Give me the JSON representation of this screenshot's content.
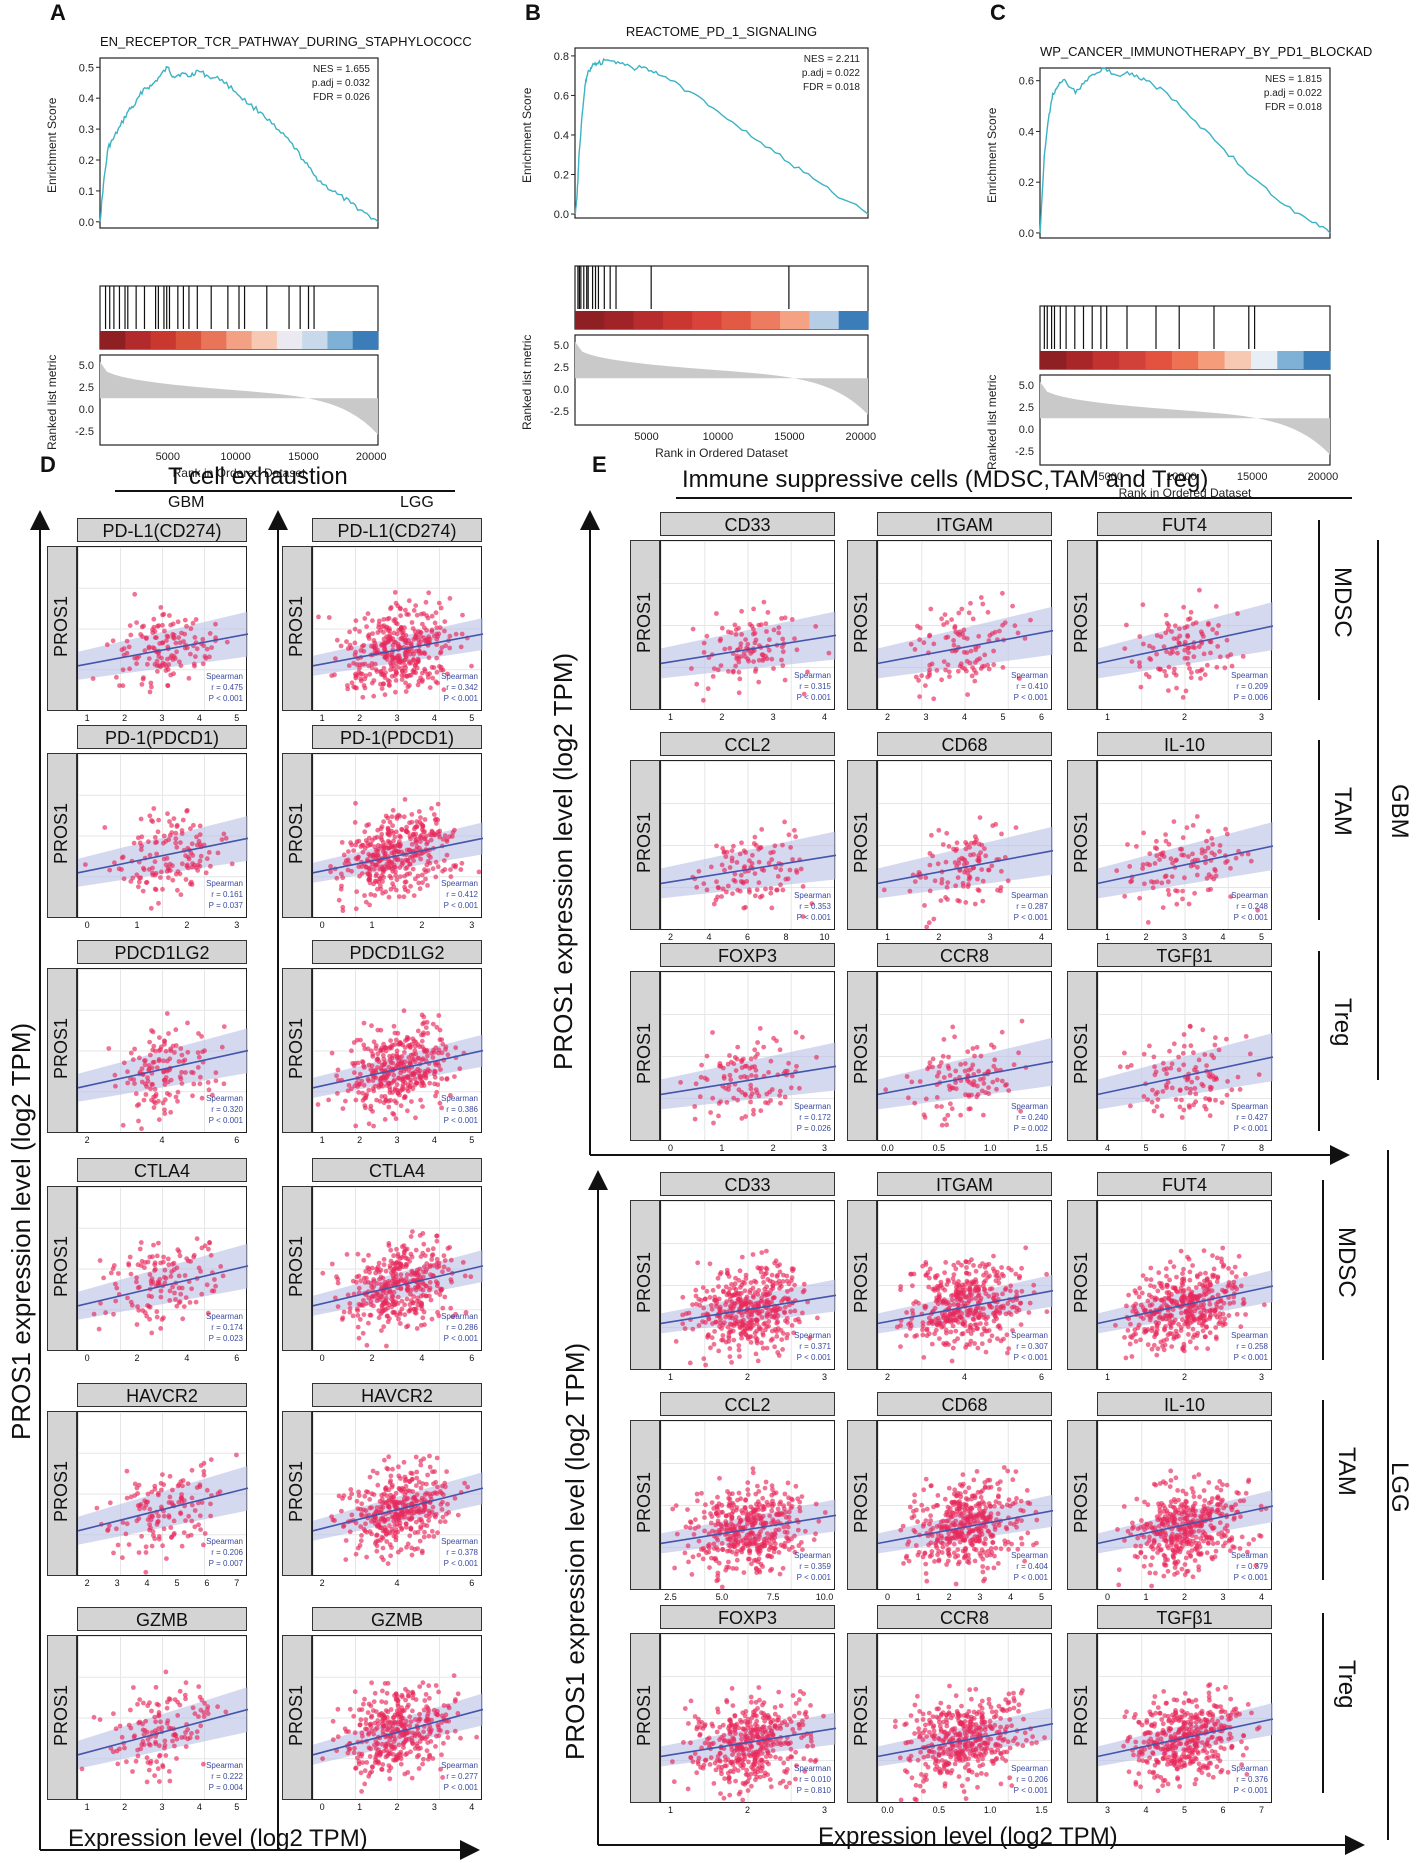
{
  "chart_data": [
    {
      "type": "line",
      "letter": "A",
      "title": "EN_RECEPTOR_TCR_PATHWAY_DURING_STAPHYLOCOCC",
      "ylabel": "Enrichment Score",
      "ylabel2": "Ranked list metric",
      "xlabel": "Rank in Ordered Dataset",
      "nes": "NES = 1.655",
      "padj": "p.adj = 0.032",
      "fdr": "FDR = 0.026",
      "yticks": [
        "0.5",
        "0.4",
        "0.3",
        "0.2",
        "0.1",
        "0.0"
      ],
      "yticks2": [
        "5.0",
        "2.5",
        "0.0",
        "-2.5"
      ],
      "xticks": [
        "5000",
        "10000",
        "15000",
        "20000"
      ],
      "x": [
        0,
        250,
        600,
        1000,
        1500,
        2100,
        2600,
        3200,
        3800,
        4400,
        5000,
        5400,
        6000,
        6600,
        7200,
        8000,
        9000,
        10000,
        11000,
        12000,
        13000,
        14000,
        15000,
        15800,
        16500,
        17500,
        18500,
        19500,
        20500
      ],
      "y": [
        0.0,
        0.12,
        0.24,
        0.27,
        0.31,
        0.36,
        0.38,
        0.43,
        0.44,
        0.47,
        0.5,
        0.47,
        0.48,
        0.47,
        0.49,
        0.47,
        0.46,
        0.42,
        0.38,
        0.35,
        0.3,
        0.26,
        0.2,
        0.15,
        0.12,
        0.09,
        0.06,
        0.03,
        0.0
      ]
    },
    {
      "type": "line",
      "letter": "B",
      "title": "REACTOME_PD_1_SIGNALING",
      "ylabel": "Enrichment Score",
      "ylabel2": "Ranked list metric",
      "xlabel": "Rank in Ordered Dataset",
      "nes": "NES = 2.211",
      "padj": "p.adj = 0.022",
      "fdr": "FDR = 0.018",
      "yticks": [
        "0.8",
        "0.6",
        "0.4",
        "0.2",
        "0.0"
      ],
      "yticks2": [
        "5.0",
        "2.5",
        "0.0",
        "-2.5"
      ],
      "xticks": [
        "5000",
        "10000",
        "15000",
        "20000"
      ],
      "x": [
        0,
        150,
        300,
        500,
        700,
        900,
        1200,
        1600,
        2200,
        3000,
        4000,
        5000,
        6000,
        8000,
        10000,
        12000,
        14000,
        16000,
        18000,
        20500
      ],
      "y": [
        0.0,
        0.1,
        0.32,
        0.5,
        0.65,
        0.72,
        0.75,
        0.76,
        0.78,
        0.77,
        0.74,
        0.74,
        0.7,
        0.62,
        0.52,
        0.42,
        0.31,
        0.21,
        0.11,
        0.0
      ]
    },
    {
      "type": "line",
      "letter": "C",
      "title": "WP_CANCER_IMMUNOTHERAPY_BY_PD1_BLOCKAD",
      "ylabel": "Enrichment Score",
      "ylabel2": "Ranked list metric",
      "xlabel": "Rank in Ordered Dataset",
      "nes": "NES = 1.815",
      "padj": "p.adj = 0.022",
      "fdr": "FDR = 0.018",
      "yticks": [
        "0.6",
        "0.4",
        "0.2",
        "0.0"
      ],
      "yticks2": [
        "5.0",
        "2.5",
        "0.0",
        "-2.5"
      ],
      "xticks": [
        "5000",
        "10000",
        "15000",
        "20000"
      ],
      "x": [
        0,
        300,
        600,
        900,
        1300,
        1800,
        2500,
        3200,
        4000,
        4600,
        5500,
        6500,
        7500,
        9000,
        11000,
        13000,
        15000,
        17000,
        19000,
        20500
      ],
      "y": [
        0.0,
        0.3,
        0.45,
        0.55,
        0.58,
        0.6,
        0.55,
        0.6,
        0.63,
        0.65,
        0.62,
        0.63,
        0.6,
        0.55,
        0.44,
        0.33,
        0.22,
        0.12,
        0.05,
        0.0
      ]
    }
  ],
  "panel_d": {
    "letter": "D",
    "title": "T cell exhaustion",
    "ylabel": "PROS1 expression level (log2 TPM)",
    "xlabel": "Expression level (log2 TPM)",
    "strip_label": "PROS1",
    "cohorts": [
      "GBM",
      "LGG"
    ],
    "genes": [
      "PD-L1(CD274)",
      "PD-1(PDCD1)",
      "PDCD1LG2",
      "CTLA4",
      "HAVCR2",
      "GZMB"
    ],
    "stat_title": "Spearman",
    "gbm": [
      {
        "r": "r = 0.475",
        "p": "P < 0.001",
        "xticks": [
          "1",
          "2",
          "3",
          "4",
          "5"
        ]
      },
      {
        "r": "r = 0.161",
        "p": "P = 0.037",
        "xticks": [
          "0",
          "1",
          "2",
          "3"
        ]
      },
      {
        "r": "r = 0.320",
        "p": "P < 0.001",
        "xticks": [
          "2",
          "4",
          "6"
        ]
      },
      {
        "r": "r = 0.174",
        "p": "P = 0.023",
        "xticks": [
          "0",
          "2",
          "4",
          "6"
        ]
      },
      {
        "r": "r = 0.206",
        "p": "P = 0.007",
        "xticks": [
          "2",
          "3",
          "4",
          "5",
          "6",
          "7"
        ]
      },
      {
        "r": "r = 0.222",
        "p": "P = 0.004",
        "xticks": [
          "1",
          "2",
          "3",
          "4",
          "5"
        ]
      }
    ],
    "lgg": [
      {
        "r": "r = 0.342",
        "p": "P < 0.001",
        "xticks": [
          "1",
          "2",
          "3",
          "4",
          "5"
        ]
      },
      {
        "r": "r = 0.412",
        "p": "P < 0.001",
        "xticks": [
          "0",
          "1",
          "2",
          "3"
        ]
      },
      {
        "r": "r = 0.386",
        "p": "P < 0.001",
        "xticks": [
          "1",
          "2",
          "3",
          "4",
          "5"
        ]
      },
      {
        "r": "r = 0.286",
        "p": "P < 0.001",
        "xticks": [
          "0",
          "2",
          "4",
          "6"
        ]
      },
      {
        "r": "r = 0.378",
        "p": "P < 0.001",
        "xticks": [
          "2",
          "4",
          "6"
        ]
      },
      {
        "r": "r = 0.277",
        "p": "P < 0.001",
        "xticks": [
          "0",
          "1",
          "2",
          "3",
          "4"
        ]
      }
    ]
  },
  "panel_e": {
    "letter": "E",
    "title": "Immune suppressive cells (MDSC,TAM and Treg)",
    "ylabel": "PROS1 expression level (log2 TPM)",
    "xlabel": "Expression level (log2 TPM)",
    "strip_label": "PROS1",
    "row_labels": [
      "MDSC",
      "TAM",
      "Treg"
    ],
    "cohorts": [
      "GBM",
      "LGG"
    ],
    "stat_title": "Spearman",
    "genes": [
      "CD33",
      "ITGAM",
      "FUT4",
      "CCL2",
      "CD68",
      "IL-10",
      "FOXP3",
      "CCR8",
      "TGFβ1"
    ],
    "gbm": [
      {
        "r": "r = 0.315",
        "p": "P < 0.001",
        "xticks": [
          "1",
          "2",
          "3",
          "4"
        ]
      },
      {
        "r": "r = 0.410",
        "p": "P < 0.001",
        "xticks": [
          "2",
          "3",
          "4",
          "5",
          "6"
        ]
      },
      {
        "r": "r = 0.209",
        "p": "P = 0.006",
        "xticks": [
          "1",
          "2",
          "3"
        ]
      },
      {
        "r": "r = 0.353",
        "p": "P < 0.001",
        "xticks": [
          "2",
          "4",
          "6",
          "8",
          "10"
        ]
      },
      {
        "r": "r = 0.287",
        "p": "P < 0.001",
        "xticks": [
          "1",
          "2",
          "3",
          "4"
        ]
      },
      {
        "r": "r = 0.248",
        "p": "P < 0.001",
        "xticks": [
          "1",
          "2",
          "3",
          "4",
          "5"
        ]
      },
      {
        "r": "r = 0.172",
        "p": "P = 0.026",
        "xticks": [
          "0",
          "1",
          "2",
          "3"
        ]
      },
      {
        "r": "r = 0.240",
        "p": "P = 0.002",
        "xticks": [
          "0.0",
          "0.5",
          "1.0",
          "1.5"
        ]
      },
      {
        "r": "r = 0.427",
        "p": "P < 0.001",
        "xticks": [
          "4",
          "5",
          "6",
          "7",
          "8"
        ]
      }
    ],
    "lgg": [
      {
        "r": "r = 0.371",
        "p": "P < 0.001",
        "xticks": [
          "1",
          "2",
          "3"
        ]
      },
      {
        "r": "r = 0.307",
        "p": "P < 0.001",
        "xticks": [
          "2",
          "4",
          "6"
        ]
      },
      {
        "r": "r = 0.258",
        "p": "P < 0.001",
        "xticks": [
          "1",
          "2",
          "3"
        ]
      },
      {
        "r": "r = 0.359",
        "p": "P < 0.001",
        "xticks": [
          "2.5",
          "5.0",
          "7.5",
          "10.0"
        ]
      },
      {
        "r": "r = 0.404",
        "p": "P < 0.001",
        "xticks": [
          "0",
          "1",
          "2",
          "3",
          "4",
          "5"
        ]
      },
      {
        "r": "r = 0.379",
        "p": "P < 0.001",
        "xticks": [
          "0",
          "1",
          "2",
          "3",
          "4"
        ]
      },
      {
        "r": "r = 0.010",
        "p": "P = 0.810",
        "xticks": [
          "1",
          "2",
          "3"
        ]
      },
      {
        "r": "r = 0.206",
        "p": "P < 0.001",
        "xticks": [
          "0.0",
          "0.5",
          "1.0",
          "1.5"
        ]
      },
      {
        "r": "r = 0.376",
        "p": "P < 0.001",
        "xticks": [
          "3",
          "4",
          "5",
          "6",
          "7"
        ]
      }
    ]
  },
  "colors": {
    "es_line": "#3bb3c3",
    "point": "#e8285a",
    "fit": "#4455aa",
    "band": "#b8bfe6",
    "hit": "#111111"
  }
}
